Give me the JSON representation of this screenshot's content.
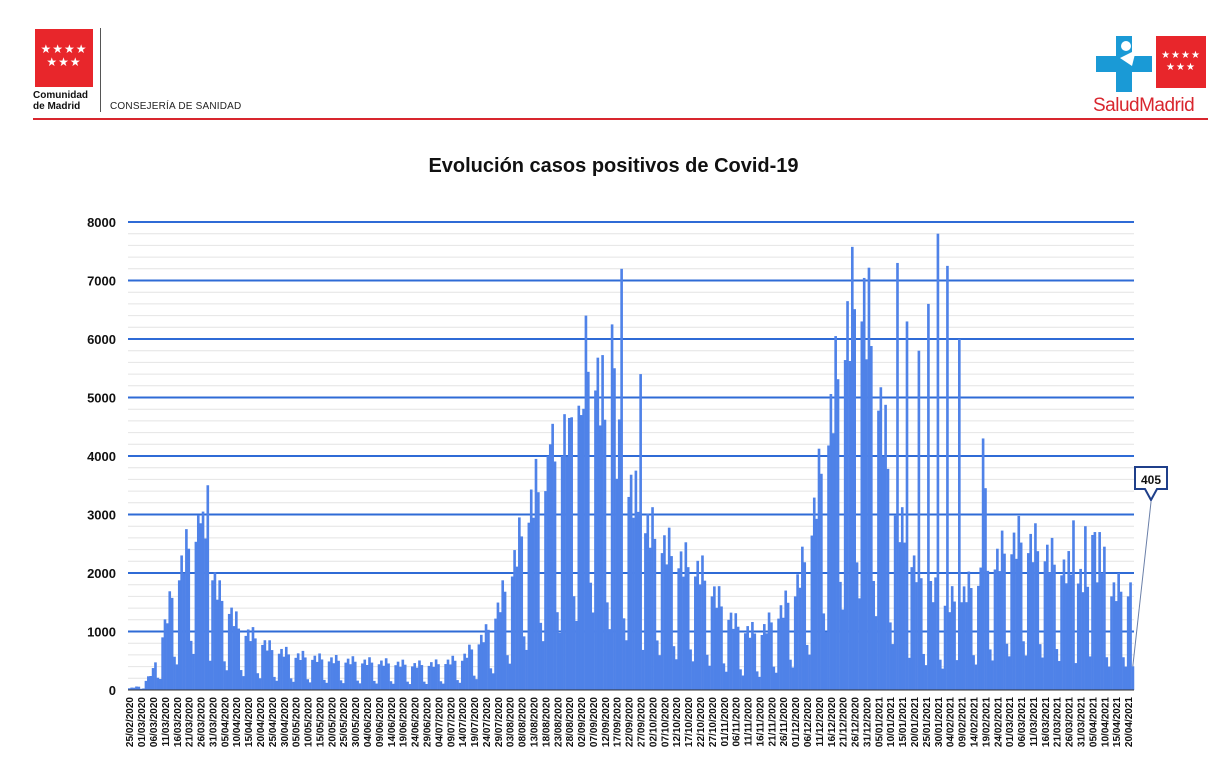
{
  "header": {
    "org_name_line1": "Comunidad",
    "org_name_line2": "de Madrid",
    "department": "CONSEJERÍA DE SANIDAD",
    "brand": "SaludMadrid",
    "brand_color": "#d8262e"
  },
  "chart_data": {
    "type": "bar",
    "title": "Evolución casos positivos de Covid-19",
    "xlabel": "",
    "ylabel": "",
    "ylim": [
      0,
      8000
    ],
    "yticks": [
      0,
      1000,
      2000,
      3000,
      4000,
      5000,
      6000,
      7000,
      8000
    ],
    "grid": true,
    "bar_color": "#4f82e8",
    "gridline_color": "#2f6bd6",
    "x_start": "25/02/2020",
    "x_end": "22/04/2021",
    "xtick_labels": [
      "25/02/2020",
      "01/03/2020",
      "06/03/2020",
      "11/03/2020",
      "16/03/2020",
      "21/03/2020",
      "26/03/2020",
      "31/03/2020",
      "05/04/2020",
      "10/04/2020",
      "15/04/2020",
      "20/04/2020",
      "25/04/2020",
      "30/04/2020",
      "05/05/2020",
      "10/05/2020",
      "15/05/2020",
      "20/05/2020",
      "25/05/2020",
      "30/05/2020",
      "04/06/2020",
      "09/06/2020",
      "14/06/2020",
      "19/06/2020",
      "24/06/2020",
      "29/06/2020",
      "04/07/2020",
      "09/07/2020",
      "14/07/2020",
      "19/07/2020",
      "24/07/2020",
      "29/07/2020",
      "03/08/2020",
      "08/08/2020",
      "13/08/2020",
      "18/08/2020",
      "23/08/2020",
      "28/08/2020",
      "02/09/2020",
      "07/09/2020",
      "12/09/2020",
      "17/09/2020",
      "22/09/2020",
      "27/09/2020",
      "02/10/2020",
      "07/10/2020",
      "12/10/2020",
      "17/10/2020",
      "22/10/2020",
      "27/10/2020",
      "01/11/2020",
      "06/11/2020",
      "11/11/2020",
      "16/11/2020",
      "21/11/2020",
      "26/11/2020",
      "01/12/2020",
      "06/12/2020",
      "11/12/2020",
      "16/12/2020",
      "21/12/2020",
      "26/12/2020",
      "31/12/2020",
      "05/01/2021",
      "10/01/2021",
      "15/01/2021",
      "20/01/2021",
      "25/01/2021",
      "30/01/2021",
      "04/02/2021",
      "09/02/2021",
      "14/02/2021",
      "19/02/2021",
      "24/02/2021",
      "01/03/2021",
      "06/03/2021",
      "11/03/2021",
      "16/03/2021",
      "21/03/2021",
      "26/03/2021",
      "31/03/2021",
      "05/04/2021",
      "10/04/2021",
      "15/04/2021",
      "20/04/2021"
    ],
    "anchors": [
      [
        0,
        30
      ],
      [
        5,
        60
      ],
      [
        10,
        300
      ],
      [
        14,
        900
      ],
      [
        18,
        1500
      ],
      [
        22,
        2000
      ],
      [
        26,
        2400
      ],
      [
        29,
        2600
      ],
      [
        31,
        2700
      ],
      [
        34,
        2000
      ],
      [
        38,
        1500
      ],
      [
        42,
        1300
      ],
      [
        46,
        1000
      ],
      [
        50,
        900
      ],
      [
        55,
        800
      ],
      [
        60,
        650
      ],
      [
        70,
        550
      ],
      [
        80,
        500
      ],
      [
        90,
        470
      ],
      [
        100,
        450
      ],
      [
        110,
        430
      ],
      [
        120,
        400
      ],
      [
        130,
        420
      ],
      [
        140,
        500
      ],
      [
        150,
        900
      ],
      [
        155,
        1300
      ],
      [
        160,
        1800
      ],
      [
        165,
        2500
      ],
      [
        170,
        3100
      ],
      [
        175,
        3400
      ],
      [
        180,
        3800
      ],
      [
        185,
        4300
      ],
      [
        190,
        5000
      ],
      [
        195,
        5300
      ],
      [
        200,
        4400
      ],
      [
        205,
        3800
      ],
      [
        210,
        3300
      ],
      [
        215,
        2800
      ],
      [
        220,
        2500
      ],
      [
        225,
        2300
      ],
      [
        230,
        2100
      ],
      [
        240,
        1900
      ],
      [
        245,
        1600
      ],
      [
        250,
        1300
      ],
      [
        255,
        1050
      ],
      [
        260,
        950
      ],
      [
        265,
        900
      ],
      [
        270,
        1100
      ],
      [
        275,
        1300
      ],
      [
        280,
        1600
      ],
      [
        285,
        2200
      ],
      [
        290,
        3300
      ],
      [
        295,
        4400
      ],
      [
        300,
        5500
      ],
      [
        305,
        6200
      ],
      [
        308,
        6300
      ],
      [
        312,
        5600
      ],
      [
        316,
        4500
      ],
      [
        320,
        3300
      ],
      [
        325,
        2500
      ],
      [
        330,
        2000
      ],
      [
        335,
        1700
      ],
      [
        340,
        1500
      ],
      [
        345,
        1400
      ],
      [
        350,
        1500
      ],
      [
        355,
        1700
      ],
      [
        360,
        1900
      ],
      [
        365,
        2100
      ],
      [
        370,
        2300
      ],
      [
        375,
        2400
      ],
      [
        380,
        2300
      ],
      [
        385,
        2200
      ],
      [
        390,
        2000
      ],
      [
        395,
        1900
      ],
      [
        400,
        1800
      ],
      [
        405,
        1600
      ]
    ],
    "spikes": [
      [
        33,
        3500
      ],
      [
        31,
        3050
      ],
      [
        30,
        2850
      ],
      [
        207,
        7200
      ],
      [
        203,
        6250
      ],
      [
        204,
        5500
      ],
      [
        215,
        5400
      ],
      [
        340,
        7800
      ],
      [
        323,
        7300
      ],
      [
        327,
        6300
      ],
      [
        344,
        7250
      ],
      [
        336,
        6600
      ],
      [
        349,
        6000
      ],
      [
        332,
        5800
      ],
      [
        359,
        4300
      ],
      [
        360,
        3450
      ],
      [
        397,
        2900
      ],
      [
        402,
        2800
      ],
      [
        405,
        2650
      ],
      [
        406,
        2700
      ],
      [
        408,
        2700
      ],
      [
        410,
        2450
      ],
      [
        190,
        4700
      ],
      [
        185,
        4650
      ],
      [
        177,
        4200
      ]
    ],
    "last_value": 405,
    "last_value_label": "405"
  }
}
